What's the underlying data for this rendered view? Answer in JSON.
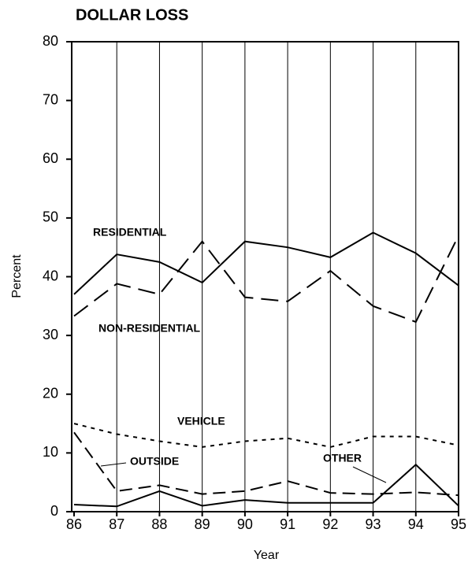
{
  "chart_data": {
    "type": "line",
    "title": "DOLLAR LOSS",
    "y_label": "Percent",
    "x_label": "Year",
    "x": [
      86,
      87,
      88,
      89,
      90,
      91,
      92,
      93,
      94,
      95
    ],
    "xlim": [
      86,
      95
    ],
    "xticks": [
      86,
      87,
      88,
      89,
      90,
      91,
      92,
      93,
      94,
      95
    ],
    "ylim": [
      0,
      80
    ],
    "yticks": [
      0,
      10,
      20,
      30,
      40,
      50,
      60,
      70,
      80
    ],
    "grid": "x",
    "series": [
      {
        "name": "RESIDENTIAL",
        "color": "#000000",
        "dash": "solid",
        "values": [
          37,
          43.8,
          42.5,
          39,
          46,
          45,
          43.3,
          47.5,
          44,
          38.5
        ]
      },
      {
        "name": "NON-RESIDENTIAL",
        "color": "#000000",
        "dash": "dashed",
        "values": [
          33.3,
          38.8,
          37,
          46,
          36.5,
          35.8,
          41,
          35,
          32.3,
          47
        ]
      },
      {
        "name": "VEHICLE",
        "color": "#000000",
        "dash": "dotted",
        "values": [
          15,
          13.2,
          12,
          11,
          12,
          12.5,
          11,
          12.8,
          12.8,
          11.3
        ]
      },
      {
        "name": "OUTSIDE",
        "color": "#000000",
        "dash": "dashdot",
        "values": [
          13.5,
          3.5,
          4.5,
          3,
          3.5,
          5.2,
          3.2,
          3,
          3.3,
          2.8
        ]
      },
      {
        "name": "OTHER",
        "color": "#000000",
        "dash": "solid",
        "values": [
          1.2,
          0.9,
          3.5,
          1,
          2,
          1.5,
          1.5,
          1.5,
          8,
          1
        ]
      }
    ]
  }
}
